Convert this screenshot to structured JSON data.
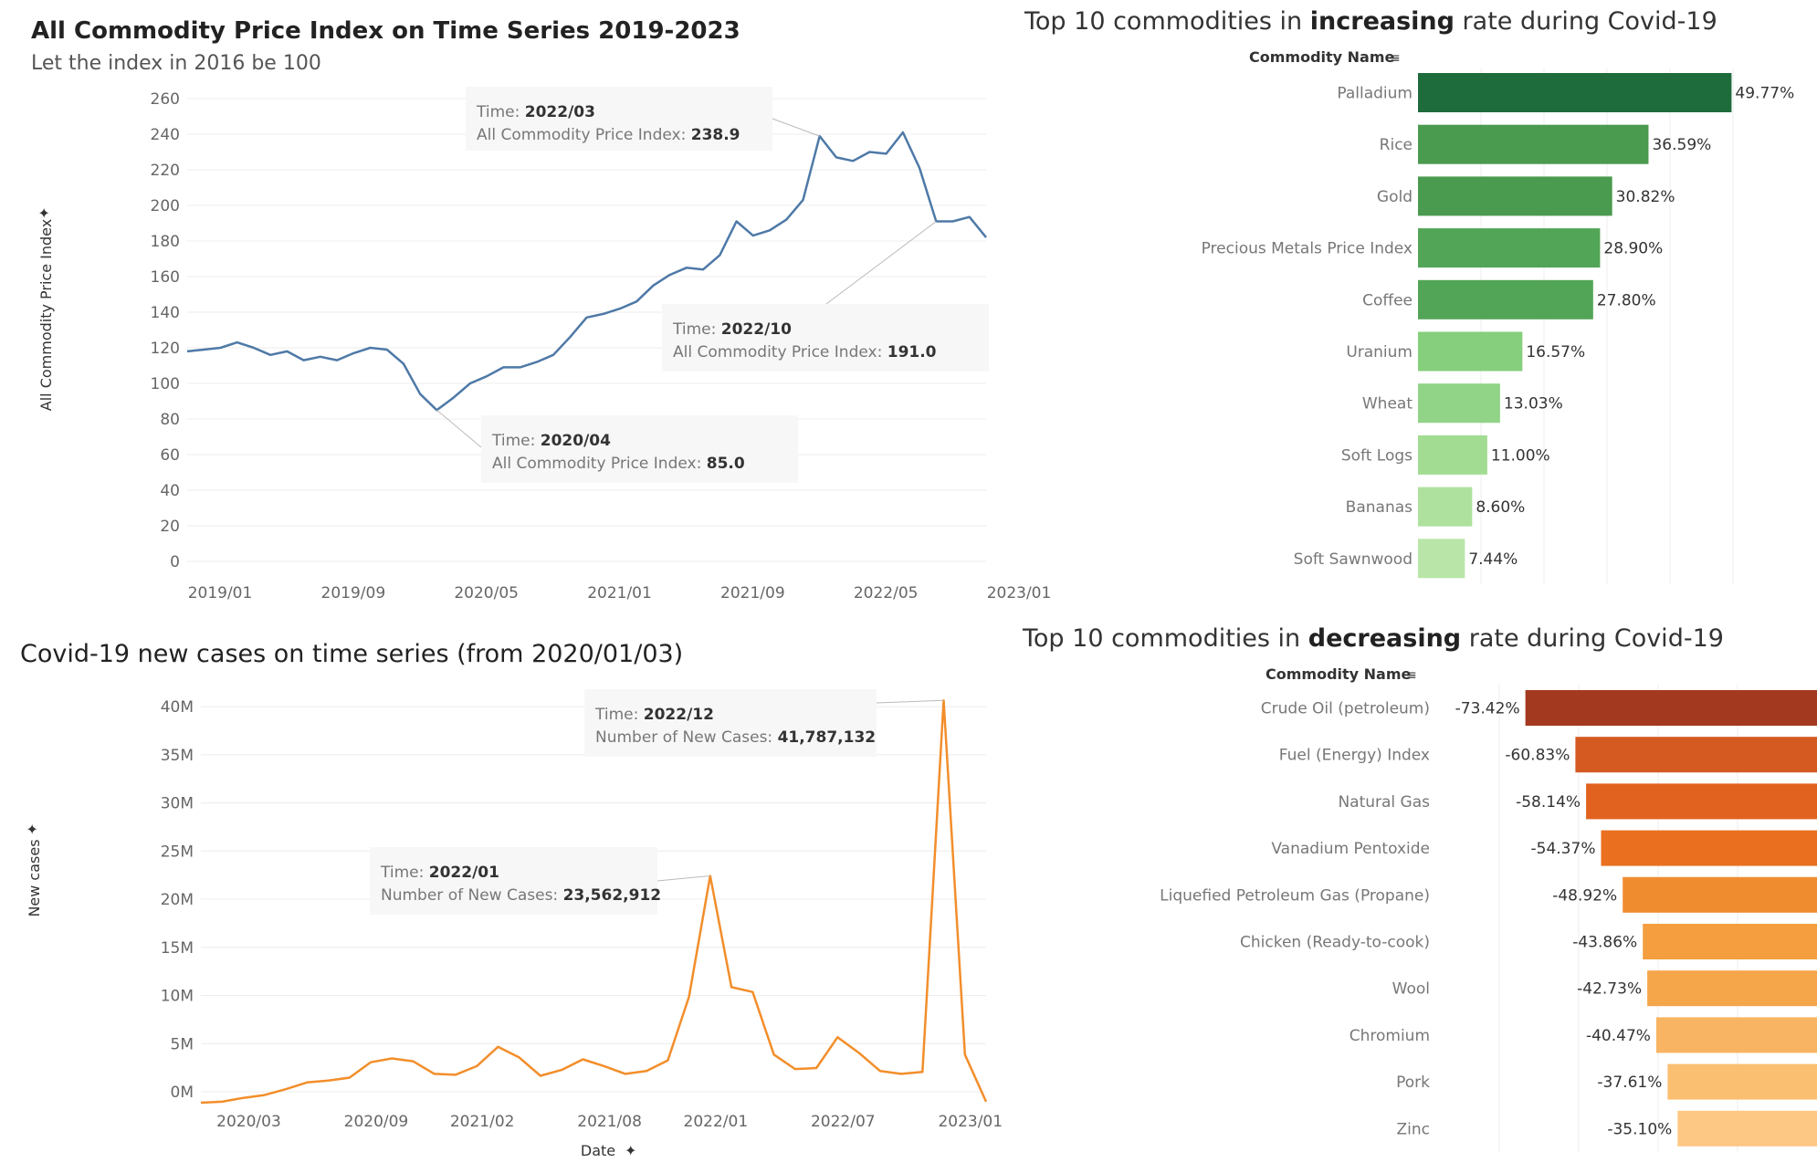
{
  "charts": {
    "price_index": {
      "title": "All Commodity Price Index on  Time Series 2019-2023",
      "subtitle": "Let the index in 2016 be 100",
      "ylabel": "All Commodity Price Index",
      "color": "#4e79a7",
      "tooltips": [
        {
          "time_label": "Time:",
          "time": "2022/03",
          "metric_label": "All Commodity Price Index:",
          "value": "238.9"
        },
        {
          "time_label": "Time:",
          "time": "2022/10",
          "metric_label": "All Commodity Price Index:",
          "value": "191.0"
        },
        {
          "time_label": "Time:",
          "time": "2020/04",
          "metric_label": "All Commodity Price Index:",
          "value": "85.0"
        }
      ]
    },
    "covid_cases": {
      "title": "Covid-19 new cases on time series (from 2020/01/03)",
      "xlabel": "Date",
      "ylabel": "New cases",
      "color": "#f28e2b",
      "tooltips": [
        {
          "time_label": "Time:",
          "time": "2022/12",
          "metric_label": "Number of New Cases:",
          "value": "41,787,132"
        },
        {
          "time_label": "Time:",
          "time": "2022/01",
          "metric_label": "Number of New Cases:",
          "value": "23,562,912"
        }
      ]
    },
    "increasing": {
      "title_pre": "Top 10 commodities in ",
      "title_bold": "increasing",
      "title_post": " rate during Covid-19",
      "header": "Commodity Name",
      "colors": [
        "#1e6b3c",
        "#4a9a4f",
        "#4a9a4f",
        "#52a556",
        "#52a556",
        "#86cf7c",
        "#92d487",
        "#a2dc93",
        "#aee19e",
        "#b9e6a8"
      ]
    },
    "decreasing": {
      "title_pre": "Top 10 commodities in ",
      "title_bold": "decreasing",
      "title_post": " rate during Covid-19",
      "header": "Commodity Name",
      "colors": [
        "#a33a20",
        "#d45a22",
        "#e0621e",
        "#ea7020",
        "#f08c30",
        "#f49e40",
        "#f5a54a",
        "#f8b462",
        "#fbbf72",
        "#fdc884"
      ]
    }
  },
  "chart_data": [
    {
      "type": "line",
      "title": "All Commodity Price Index on  Time Series 2019-2023",
      "subtitle": "Let the index in 2016 be 100",
      "xlabel": "",
      "ylabel": "All Commodity Price Index",
      "x_ticks": [
        "2019/01",
        "2019/09",
        "2020/05",
        "2021/01",
        "2021/09",
        "2022/05",
        "2023/01"
      ],
      "y_ticks": [
        0,
        20,
        40,
        60,
        80,
        100,
        120,
        140,
        160,
        180,
        200,
        220,
        240,
        260
      ],
      "ylim": [
        0,
        260
      ],
      "x": [
        "2019/01",
        "2019/02",
        "2019/03",
        "2019/04",
        "2019/05",
        "2019/06",
        "2019/07",
        "2019/08",
        "2019/09",
        "2019/10",
        "2019/11",
        "2019/12",
        "2020/01",
        "2020/02",
        "2020/03",
        "2020/04",
        "2020/05",
        "2020/06",
        "2020/07",
        "2020/08",
        "2020/09",
        "2020/10",
        "2020/11",
        "2020/12",
        "2021/01",
        "2021/02",
        "2021/03",
        "2021/04",
        "2021/05",
        "2021/06",
        "2021/07",
        "2021/08",
        "2021/09",
        "2021/10",
        "2021/11",
        "2021/12",
        "2022/01",
        "2022/02",
        "2022/03",
        "2022/04",
        "2022/05",
        "2022/06",
        "2022/07",
        "2022/08",
        "2022/09",
        "2022/10",
        "2022/11",
        "2022/12",
        "2023/01"
      ],
      "values": [
        118,
        119,
        120,
        123,
        120,
        116,
        118,
        113,
        115,
        113,
        117,
        120,
        119,
        111,
        94,
        85,
        92,
        100,
        104,
        109,
        109,
        112,
        116,
        126,
        137,
        139,
        142,
        146,
        155,
        161,
        165,
        164,
        172,
        191,
        183,
        186,
        192,
        203,
        238.9,
        227,
        225,
        230,
        229,
        241,
        221,
        191,
        191,
        193.5,
        182
      ],
      "grid": true
    },
    {
      "type": "line",
      "title": "Covid-19 new cases on time series (from 2020/01/03)",
      "xlabel": "Date",
      "ylabel": "New cases",
      "x_ticks": [
        "2020/03",
        "2020/09",
        "2021/02",
        "2021/08",
        "2022/01",
        "2022/07",
        "2023/01"
      ],
      "y_ticks": [
        "0M",
        "5M",
        "10M",
        "15M",
        "20M",
        "25M",
        "30M",
        "35M",
        "40M"
      ],
      "ylim": [
        0,
        42000000
      ],
      "x": [
        "2020/01",
        "2020/02",
        "2020/03",
        "2020/04",
        "2020/05",
        "2020/06",
        "2020/07",
        "2020/08",
        "2020/09",
        "2020/10",
        "2020/11",
        "2020/12",
        "2021/01",
        "2021/02",
        "2021/03",
        "2021/04",
        "2021/05",
        "2021/06",
        "2021/07",
        "2021/08",
        "2021/09",
        "2021/10",
        "2021/11",
        "2021/12",
        "2022/01",
        "2022/02",
        "2022/03",
        "2022/04",
        "2022/05",
        "2022/06",
        "2022/07",
        "2022/08",
        "2022/09",
        "2022/10",
        "2022/11",
        "2022/12",
        "2023/01",
        "2023/02"
      ],
      "values": [
        0,
        100000,
        500000,
        800000,
        1400000,
        2100000,
        2300000,
        2600000,
        4200000,
        4600000,
        4300000,
        3000000,
        2900000,
        3800000,
        5800000,
        4700000,
        2800000,
        3400000,
        4500000,
        3800000,
        3000000,
        3300000,
        4400000,
        11000000,
        23562912,
        12000000,
        11500000,
        5000000,
        3500000,
        3600000,
        6800000,
        5200000,
        3300000,
        3000000,
        3200000,
        41787132,
        5000000,
        100000
      ],
      "grid": true
    },
    {
      "type": "bar",
      "orientation": "horizontal",
      "title": "Top 10 commodities in increasing rate during Covid-19",
      "ylabel": "Commodity Name",
      "categories": [
        "Palladium",
        "Rice",
        "Gold",
        "Precious Metals Price Index",
        "Coffee",
        "Uranium",
        "Wheat",
        "Soft Logs",
        "Bananas",
        "Soft Sawnwood"
      ],
      "values": [
        49.77,
        36.59,
        30.82,
        28.9,
        27.8,
        16.57,
        13.03,
        11.0,
        8.6,
        7.44
      ],
      "labels": [
        "49.77%",
        "36.59%",
        "30.82%",
        "28.90%",
        "27.80%",
        "16.57%",
        "13.03%",
        "11.00%",
        "8.60%",
        "7.44%"
      ]
    },
    {
      "type": "bar",
      "orientation": "horizontal",
      "title": "Top 10 commodities in decreasing rate during Covid-19",
      "ylabel": "Commodity Name",
      "categories": [
        "Crude Oil (petroleum)",
        "Fuel (Energy) Index",
        "Natural Gas",
        "Vanadium Pentoxide",
        "Liquefied Petroleum Gas (Propane)",
        "Chicken (Ready-to-cook)",
        "Wool",
        "Chromium",
        "Pork",
        "Zinc"
      ],
      "values": [
        -73.42,
        -60.83,
        -58.14,
        -54.37,
        -48.92,
        -43.86,
        -42.73,
        -40.47,
        -37.61,
        -35.1
      ],
      "labels": [
        "-73.42%",
        "-60.83%",
        "-58.14%",
        "-54.37%",
        "-48.92%",
        "-43.86%",
        "-42.73%",
        "-40.47%",
        "-37.61%",
        "-35.10%"
      ]
    }
  ]
}
